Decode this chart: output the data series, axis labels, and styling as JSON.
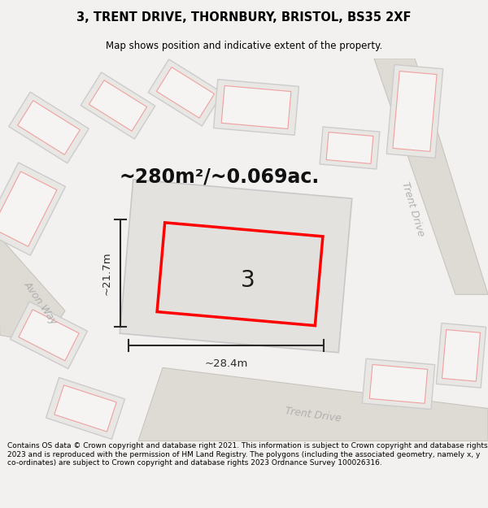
{
  "title": "3, TRENT DRIVE, THORNBURY, BRISTOL, BS35 2XF",
  "subtitle": "Map shows position and indicative extent of the property.",
  "area_text": "~280m²/~0.069ac.",
  "width_label": "~28.4m",
  "height_label": "~21.7m",
  "number_label": "3",
  "footer_text": "Contains OS data © Crown copyright and database right 2021. This information is subject to Crown copyright and database rights 2023 and is reproduced with the permission of HM Land Registry. The polygons (including the associated geometry, namely x, y co-ordinates) are subject to Crown copyright and database rights 2023 Ordnance Survey 100026316.",
  "bg_color": "#f2f1f0",
  "map_bg": "#eeedeb",
  "property_outline_color": "#ff0000",
  "dimension_color": "#2a2a2a",
  "street_label_color": "#b0b0b0",
  "title_color": "#000000",
  "footer_color": "#000000"
}
